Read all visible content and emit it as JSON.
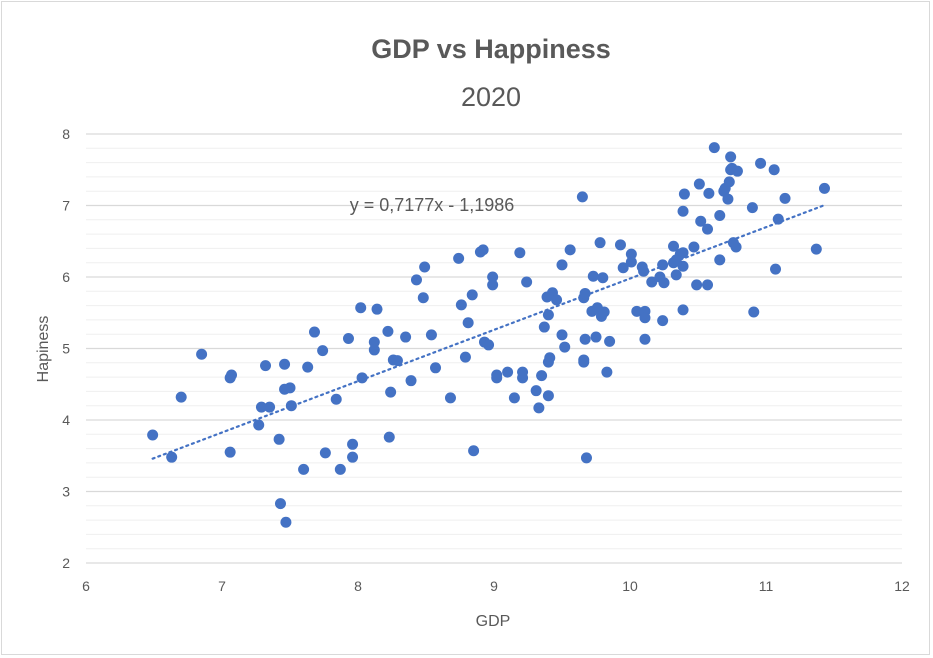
{
  "chart_data": {
    "type": "scatter",
    "title": "GDP vs Happiness",
    "subtitle": "2020",
    "xlabel": "GDP",
    "ylabel": "Hapiness",
    "xlim": [
      6,
      12
    ],
    "ylim": [
      2,
      8
    ],
    "xticks": [
      "6",
      "7",
      "8",
      "9",
      "10",
      "11",
      "12"
    ],
    "yticks": [
      "2",
      "3",
      "4",
      "5",
      "6",
      "7",
      "8"
    ],
    "grid": true,
    "color": "#4472c4",
    "trendline": {
      "type": "linear",
      "slope": 0.7177,
      "intercept": -1.1986,
      "style": "dotted",
      "label": "y = 0,7177x - 1,1986"
    },
    "points": [
      [
        6.49,
        3.79
      ],
      [
        6.63,
        3.48
      ],
      [
        6.7,
        4.32
      ],
      [
        6.85,
        4.92
      ],
      [
        7.06,
        4.59
      ],
      [
        7.07,
        4.63
      ],
      [
        7.06,
        3.55
      ],
      [
        7.27,
        3.93
      ],
      [
        7.29,
        4.18
      ],
      [
        7.35,
        4.18
      ],
      [
        7.32,
        4.76
      ],
      [
        7.42,
        3.73
      ],
      [
        7.43,
        2.83
      ],
      [
        7.47,
        2.57
      ],
      [
        7.46,
        4.43
      ],
      [
        7.5,
        4.45
      ],
      [
        7.46,
        4.78
      ],
      [
        7.51,
        4.2
      ],
      [
        7.6,
        3.31
      ],
      [
        7.63,
        4.74
      ],
      [
        7.68,
        5.23
      ],
      [
        7.74,
        4.97
      ],
      [
        7.76,
        3.54
      ],
      [
        7.84,
        4.29
      ],
      [
        7.87,
        3.31
      ],
      [
        7.93,
        5.14
      ],
      [
        7.96,
        3.66
      ],
      [
        7.96,
        3.48
      ],
      [
        8.02,
        5.57
      ],
      [
        8.03,
        4.59
      ],
      [
        8.12,
        5.09
      ],
      [
        8.12,
        4.98
      ],
      [
        8.14,
        5.55
      ],
      [
        8.22,
        5.24
      ],
      [
        8.23,
        3.76
      ],
      [
        8.24,
        4.39
      ],
      [
        8.26,
        4.84
      ],
      [
        8.29,
        4.83
      ],
      [
        8.35,
        5.16
      ],
      [
        8.39,
        4.55
      ],
      [
        8.43,
        5.96
      ],
      [
        8.48,
        5.71
      ],
      [
        8.49,
        6.14
      ],
      [
        8.54,
        5.19
      ],
      [
        8.57,
        4.73
      ],
      [
        8.68,
        4.31
      ],
      [
        8.74,
        6.26
      ],
      [
        8.76,
        5.61
      ],
      [
        8.81,
        5.36
      ],
      [
        8.79,
        4.88
      ],
      [
        8.84,
        5.75
      ],
      [
        8.85,
        3.57
      ],
      [
        8.9,
        6.35
      ],
      [
        8.92,
        6.38
      ],
      [
        8.93,
        5.09
      ],
      [
        8.96,
        5.05
      ],
      [
        8.99,
        6.0
      ],
      [
        8.99,
        5.89
      ],
      [
        9.02,
        4.63
      ],
      [
        9.02,
        4.59
      ],
      [
        9.1,
        4.67
      ],
      [
        9.15,
        4.31
      ],
      [
        9.19,
        6.34
      ],
      [
        9.21,
        4.59
      ],
      [
        9.21,
        4.67
      ],
      [
        9.24,
        5.93
      ],
      [
        9.31,
        4.41
      ],
      [
        9.33,
        4.17
      ],
      [
        9.35,
        4.62
      ],
      [
        9.37,
        5.3
      ],
      [
        9.39,
        5.72
      ],
      [
        9.4,
        4.34
      ],
      [
        9.4,
        5.47
      ],
      [
        9.41,
        4.87
      ],
      [
        9.4,
        4.81
      ],
      [
        9.43,
        5.78
      ],
      [
        9.46,
        5.68
      ],
      [
        9.5,
        5.19
      ],
      [
        9.5,
        6.17
      ],
      [
        9.52,
        5.02
      ],
      [
        9.56,
        6.38
      ],
      [
        9.65,
        7.12
      ],
      [
        9.66,
        4.81
      ],
      [
        9.66,
        4.84
      ],
      [
        9.66,
        5.71
      ],
      [
        9.67,
        5.77
      ],
      [
        9.67,
        5.13
      ],
      [
        9.68,
        3.47
      ],
      [
        9.73,
        6.01
      ],
      [
        9.72,
        5.52
      ],
      [
        9.75,
        5.16
      ],
      [
        9.76,
        5.57
      ],
      [
        9.78,
        6.48
      ],
      [
        9.81,
        5.51
      ],
      [
        9.79,
        5.45
      ],
      [
        9.8,
        5.99
      ],
      [
        9.83,
        4.67
      ],
      [
        9.85,
        5.1
      ],
      [
        9.93,
        6.45
      ],
      [
        9.95,
        6.13
      ],
      [
        10.01,
        6.32
      ],
      [
        10.01,
        6.21
      ],
      [
        10.05,
        5.52
      ],
      [
        10.09,
        6.14
      ],
      [
        10.1,
        6.08
      ],
      [
        10.11,
        5.52
      ],
      [
        10.11,
        5.43
      ],
      [
        10.11,
        5.13
      ],
      [
        10.16,
        5.93
      ],
      [
        10.22,
        6.0
      ],
      [
        10.24,
        6.17
      ],
      [
        10.24,
        5.39
      ],
      [
        10.25,
        5.92
      ],
      [
        10.32,
        6.2
      ],
      [
        10.34,
        6.24
      ],
      [
        10.32,
        6.43
      ],
      [
        10.34,
        6.03
      ],
      [
        10.37,
        6.32
      ],
      [
        10.39,
        6.34
      ],
      [
        10.39,
        6.15
      ],
      [
        10.39,
        5.54
      ],
      [
        10.39,
        6.92
      ],
      [
        10.4,
        7.16
      ],
      [
        10.47,
        6.42
      ],
      [
        10.49,
        5.89
      ],
      [
        10.57,
        5.89
      ],
      [
        10.51,
        7.3
      ],
      [
        10.52,
        6.78
      ],
      [
        10.57,
        6.67
      ],
      [
        10.58,
        7.17
      ],
      [
        10.62,
        7.81
      ],
      [
        10.66,
        6.24
      ],
      [
        10.66,
        6.86
      ],
      [
        10.69,
        7.2
      ],
      [
        10.7,
        7.24
      ],
      [
        10.73,
        7.33
      ],
      [
        10.74,
        7.5
      ],
      [
        10.75,
        7.52
      ],
      [
        10.74,
        7.68
      ],
      [
        10.79,
        7.48
      ],
      [
        10.72,
        7.09
      ],
      [
        10.76,
        6.48
      ],
      [
        10.78,
        6.42
      ],
      [
        10.9,
        6.97
      ],
      [
        10.91,
        5.51
      ],
      [
        10.96,
        7.59
      ],
      [
        11.06,
        7.5
      ],
      [
        11.07,
        6.11
      ],
      [
        11.09,
        6.81
      ],
      [
        11.14,
        7.1
      ],
      [
        11.37,
        6.39
      ],
      [
        11.43,
        7.24
      ]
    ]
  }
}
